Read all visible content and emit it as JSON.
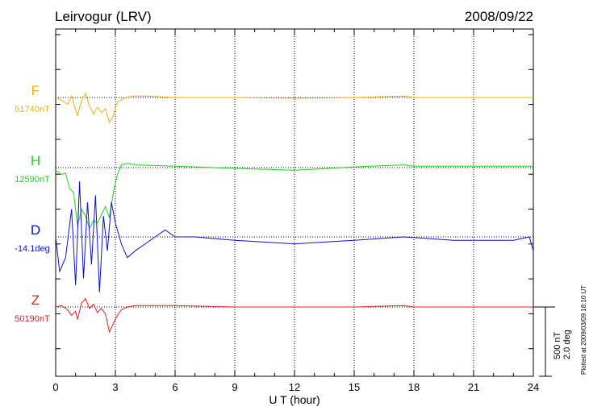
{
  "chart_data": {
    "type": "line",
    "title": "Leirvogur (LRV)",
    "date": "2008/09/22",
    "xlabel": "U T (hour)",
    "xlim": [
      0,
      24
    ],
    "xticks": [
      0,
      3,
      6,
      9,
      12,
      15,
      18,
      21,
      24
    ],
    "grid": "vertical dotted lines every 3 hours",
    "scale_bar": {
      "label_nt": "500 nT",
      "label_deg": "2.0 deg",
      "value_nt": 500
    },
    "plotted_note": "Plotted at 2009/03/09 18:10 UT",
    "series": [
      {
        "name": "F",
        "baseline_label": "51740nT",
        "color": "#f0b000",
        "x": [
          0,
          0.3,
          0.6,
          0.8,
          1.0,
          1.1,
          1.3,
          1.5,
          1.7,
          1.9,
          2.1,
          2.3,
          2.5,
          2.7,
          2.9,
          3.1,
          3.4,
          3.8,
          4.5,
          6,
          7,
          9,
          12,
          15,
          17.5,
          18,
          21,
          24
        ],
        "values": [
          0,
          -20,
          -50,
          10,
          -90,
          -130,
          -20,
          30,
          -60,
          -120,
          -70,
          -110,
          -80,
          -180,
          -130,
          -30,
          -10,
          10,
          10,
          0,
          0,
          0,
          -5,
          0,
          10,
          0,
          0,
          0
        ]
      },
      {
        "name": "H",
        "baseline_label": "12590nT",
        "color": "#20d020",
        "x": [
          0,
          0.3,
          0.5,
          0.7,
          0.9,
          1.1,
          1.3,
          1.5,
          1.7,
          1.9,
          2.1,
          2.3,
          2.5,
          2.7,
          2.9,
          3.1,
          3.3,
          3.6,
          4,
          6,
          9,
          12,
          15,
          17.5,
          18,
          21,
          24
        ],
        "values": [
          -20,
          -50,
          -40,
          -150,
          -180,
          -420,
          -300,
          -350,
          -440,
          -380,
          -400,
          -340,
          -280,
          -360,
          -180,
          -50,
          20,
          30,
          20,
          10,
          -5,
          -20,
          5,
          20,
          10,
          10,
          10
        ]
      },
      {
        "name": "D",
        "baseline_label": "-14.1deg",
        "color": "#1010d0",
        "x": [
          0,
          0.2,
          0.5,
          0.8,
          1.0,
          1.2,
          1.4,
          1.6,
          1.8,
          2.0,
          2.2,
          2.4,
          2.6,
          2.8,
          3.0,
          3.3,
          3.6,
          4,
          4.5,
          5,
          5.5,
          6,
          7,
          9,
          12,
          15,
          17.5,
          20,
          23,
          23.8,
          24
        ],
        "values": [
          0,
          -1.0,
          -0.6,
          0.8,
          -1.4,
          1.6,
          -1.2,
          1.0,
          -0.8,
          1.2,
          -1.6,
          0.6,
          -0.4,
          1.0,
          0.4,
          -0.2,
          -0.6,
          -0.4,
          -0.2,
          0,
          0.2,
          0,
          0,
          -0.1,
          -0.2,
          -0.1,
          0,
          -0.1,
          -0.1,
          0,
          -0.4
        ]
      },
      {
        "name": "Z",
        "baseline_label": "50190nT",
        "color": "#e02020",
        "x": [
          0,
          0.3,
          0.6,
          0.8,
          1.0,
          1.1,
          1.3,
          1.5,
          1.7,
          1.9,
          2.1,
          2.3,
          2.5,
          2.7,
          2.9,
          3.1,
          3.3,
          3.6,
          4,
          6,
          9,
          12,
          15,
          17.5,
          18,
          21,
          24
        ],
        "values": [
          0,
          10,
          -20,
          -60,
          -30,
          -90,
          30,
          60,
          -10,
          20,
          -40,
          -10,
          -50,
          -180,
          -120,
          -60,
          -20,
          0,
          10,
          10,
          0,
          0,
          0,
          10,
          0,
          0,
          0
        ]
      }
    ]
  }
}
